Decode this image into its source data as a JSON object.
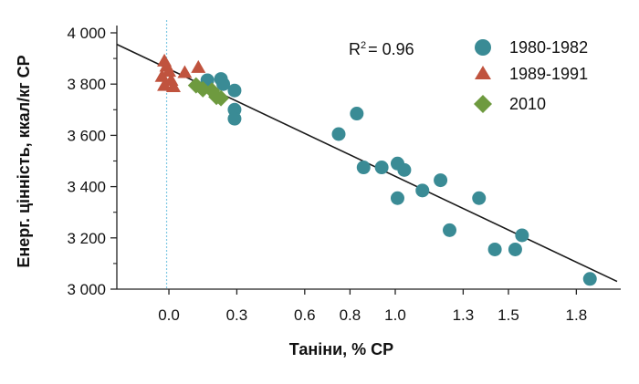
{
  "chart_data": {
    "type": "scatter",
    "xlabel": "Таніни, % СР",
    "ylabel": "Енерг. цінність, ккал/кг СР",
    "xlim": [
      -0.23,
      1.98
    ],
    "ylim": [
      3000,
      4000
    ],
    "x_ticks": [
      0.0,
      0.3,
      0.6,
      0.8,
      1.0,
      1.3,
      1.5,
      1.8
    ],
    "x_tick_labels": [
      "0.0",
      "0.3",
      "0.6",
      "0.8",
      "1.0",
      "1.3",
      "1.5",
      "1.8"
    ],
    "y_ticks": [
      3000,
      3200,
      3400,
      3600,
      3800,
      4000
    ],
    "y_tick_labels": [
      "3 000",
      "3 200",
      "3 400",
      "3 600",
      "3 800",
      "4 000"
    ],
    "annotation": {
      "label": "R",
      "superscript": "2",
      "value": "= 0.96"
    },
    "reference_line": {
      "x": -0.01,
      "style": "dotted",
      "color": "#7ec8e3"
    },
    "trendline": {
      "points": [
        [
          -0.23,
          3955
        ],
        [
          1.98,
          3030
        ]
      ],
      "color": "#1a1a1a"
    },
    "legend_position": "top-right",
    "series": [
      {
        "name": "1980-1982",
        "marker": "circle",
        "color": "#3a8b95",
        "points": [
          [
            0.17,
            3815
          ],
          [
            0.23,
            3820
          ],
          [
            0.24,
            3800
          ],
          [
            0.29,
            3775
          ],
          [
            0.29,
            3700
          ],
          [
            0.29,
            3665
          ],
          [
            0.75,
            3605
          ],
          [
            0.83,
            3685
          ],
          [
            0.86,
            3475
          ],
          [
            0.94,
            3475
          ],
          [
            1.01,
            3490
          ],
          [
            1.04,
            3465
          ],
          [
            1.01,
            3355
          ],
          [
            1.12,
            3385
          ],
          [
            1.2,
            3425
          ],
          [
            1.24,
            3230
          ],
          [
            1.37,
            3355
          ],
          [
            1.44,
            3155
          ],
          [
            1.53,
            3155
          ],
          [
            1.56,
            3210
          ],
          [
            1.86,
            3040
          ]
        ]
      },
      {
        "name": "1989-1991",
        "marker": "triangle",
        "color": "#c0533e",
        "points": [
          [
            -0.02,
            3890
          ],
          [
            -0.01,
            3870
          ],
          [
            0.0,
            3850
          ],
          [
            -0.03,
            3830
          ],
          [
            0.01,
            3815
          ],
          [
            -0.02,
            3795
          ],
          [
            0.02,
            3790
          ],
          [
            0.07,
            3845
          ],
          [
            0.13,
            3865
          ]
        ]
      },
      {
        "name": "2010",
        "marker": "diamond",
        "color": "#6e9a3f",
        "points": [
          [
            0.12,
            3795
          ],
          [
            0.15,
            3780
          ],
          [
            0.19,
            3775
          ],
          [
            0.21,
            3750
          ],
          [
            0.23,
            3745
          ]
        ]
      }
    ]
  }
}
